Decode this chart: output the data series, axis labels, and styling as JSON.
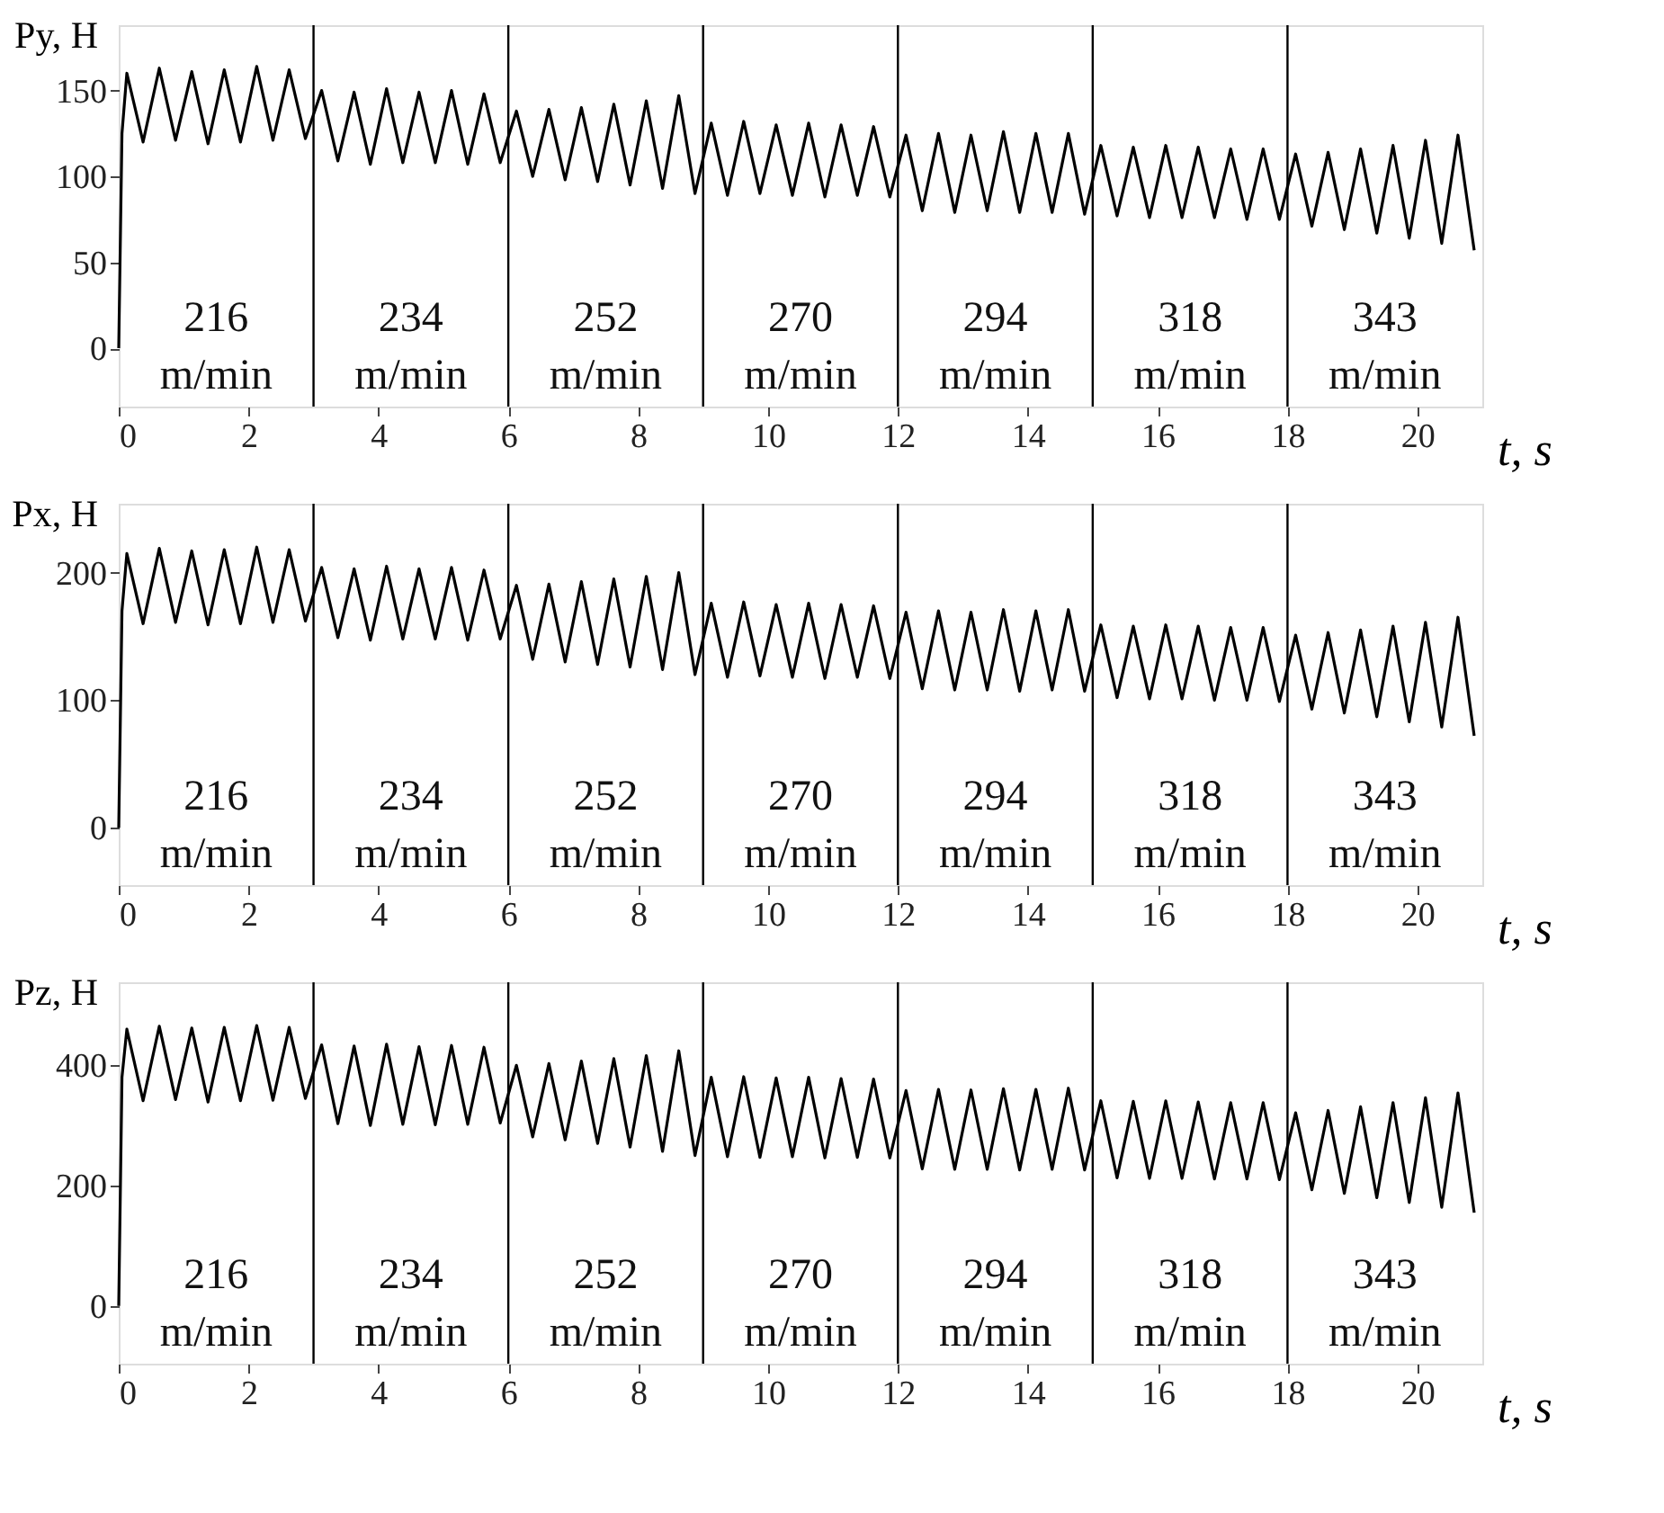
{
  "chart_data": [
    {
      "type": "line",
      "ylabel": "Py, H",
      "xlabel": "t, s",
      "xlim": [
        0,
        21
      ],
      "xticks": [
        0,
        2,
        4,
        6,
        8,
        10,
        12,
        14,
        16,
        18,
        20
      ],
      "ylim": [
        -34,
        188
      ],
      "yticks": [
        0,
        50,
        100,
        150
      ],
      "grid": false,
      "x": [
        0,
        0.05,
        0.125,
        0.375,
        0.625,
        0.875,
        1.125,
        1.375,
        1.625,
        1.875,
        2.125,
        2.375,
        2.625,
        2.875,
        3.125,
        3.375,
        3.625,
        3.875,
        4.125,
        4.375,
        4.625,
        4.875,
        5.125,
        5.375,
        5.625,
        5.875,
        6.125,
        6.375,
        6.625,
        6.875,
        7.125,
        7.375,
        7.625,
        7.875,
        8.125,
        8.375,
        8.625,
        8.875,
        9.125,
        9.375,
        9.625,
        9.875,
        10.125,
        10.375,
        10.625,
        10.875,
        11.125,
        11.375,
        11.625,
        11.875,
        12.125,
        12.375,
        12.625,
        12.875,
        13.125,
        13.375,
        13.625,
        13.875,
        14.125,
        14.375,
        14.625,
        14.875,
        15.125,
        15.375,
        15.625,
        15.875,
        16.125,
        16.375,
        16.625,
        16.875,
        17.125,
        17.375,
        17.625,
        17.875,
        18.125,
        18.375,
        18.625,
        18.875,
        19.125,
        19.375,
        19.625,
        19.875,
        20.125,
        20.375,
        20.625,
        20.875
      ],
      "series": [
        {
          "color": "#000000",
          "values": [
            0,
            125,
            160,
            120,
            163,
            121,
            161,
            119,
            162,
            120,
            164,
            121,
            162,
            122,
            150,
            109,
            149,
            107,
            151,
            108,
            149,
            108,
            150,
            107,
            148,
            108,
            138,
            100,
            139,
            98,
            140,
            97,
            142,
            95,
            144,
            93,
            147,
            90,
            131,
            89,
            132,
            90,
            130,
            89,
            131,
            88,
            130,
            89,
            129,
            88,
            124,
            80,
            125,
            79,
            124,
            80,
            126,
            79,
            125,
            79,
            125,
            78,
            118,
            77,
            117,
            76,
            118,
            76,
            117,
            76,
            116,
            75,
            116,
            75,
            113,
            71,
            114,
            69,
            116,
            67,
            118,
            64,
            121,
            61,
            124,
            57
          ]
        }
      ],
      "ref_lines": [
        {
          "axis": "x",
          "value": 3,
          "color": "#000000"
        },
        {
          "axis": "x",
          "value": 6,
          "color": "#000000"
        },
        {
          "axis": "x",
          "value": 9,
          "color": "#000000"
        },
        {
          "axis": "x",
          "value": 12,
          "color": "#000000"
        },
        {
          "axis": "x",
          "value": 15,
          "color": "#000000"
        },
        {
          "axis": "x",
          "value": 18,
          "color": "#000000"
        }
      ],
      "annotations": [
        "216\nm/min",
        "234\nm/min",
        "252\nm/min",
        "270\nm/min",
        "294\nm/min",
        "318\nm/min",
        "343\nm/min"
      ]
    },
    {
      "type": "line",
      "ylabel": "Px, H",
      "xlabel": "t, s",
      "xlim": [
        0,
        21
      ],
      "xticks": [
        0,
        2,
        4,
        6,
        8,
        10,
        12,
        14,
        16,
        18,
        20
      ],
      "ylim": [
        -45,
        254
      ],
      "yticks": [
        0,
        100,
        200
      ],
      "grid": false,
      "x": [
        0,
        0.05,
        0.125,
        0.375,
        0.625,
        0.875,
        1.125,
        1.375,
        1.625,
        1.875,
        2.125,
        2.375,
        2.625,
        2.875,
        3.125,
        3.375,
        3.625,
        3.875,
        4.125,
        4.375,
        4.625,
        4.875,
        5.125,
        5.375,
        5.625,
        5.875,
        6.125,
        6.375,
        6.625,
        6.875,
        7.125,
        7.375,
        7.625,
        7.875,
        8.125,
        8.375,
        8.625,
        8.875,
        9.125,
        9.375,
        9.625,
        9.875,
        10.125,
        10.375,
        10.625,
        10.875,
        11.125,
        11.375,
        11.625,
        11.875,
        12.125,
        12.375,
        12.625,
        12.875,
        13.125,
        13.375,
        13.625,
        13.875,
        14.125,
        14.375,
        14.625,
        14.875,
        15.125,
        15.375,
        15.625,
        15.875,
        16.125,
        16.375,
        16.625,
        16.875,
        17.125,
        17.375,
        17.625,
        17.875,
        18.125,
        18.375,
        18.625,
        18.875,
        19.125,
        19.375,
        19.625,
        19.875,
        20.125,
        20.375,
        20.625,
        20.875
      ],
      "series": [
        {
          "color": "#000000",
          "values": [
            0,
            170,
            215,
            160,
            219,
            161,
            217,
            159,
            218,
            160,
            220,
            161,
            218,
            162,
            204,
            149,
            203,
            147,
            205,
            148,
            203,
            148,
            204,
            147,
            202,
            148,
            190,
            132,
            191,
            130,
            193,
            128,
            195,
            126,
            197,
            124,
            200,
            120,
            176,
            118,
            177,
            119,
            175,
            118,
            176,
            117,
            175,
            118,
            174,
            117,
            169,
            109,
            170,
            108,
            169,
            108,
            171,
            107,
            170,
            108,
            171,
            107,
            159,
            102,
            158,
            101,
            159,
            101,
            158,
            100,
            157,
            100,
            157,
            99,
            151,
            93,
            153,
            90,
            155,
            87,
            158,
            83,
            161,
            79,
            165,
            72
          ]
        }
      ],
      "ref_lines": [
        {
          "axis": "x",
          "value": 3,
          "color": "#000000"
        },
        {
          "axis": "x",
          "value": 6,
          "color": "#000000"
        },
        {
          "axis": "x",
          "value": 9,
          "color": "#000000"
        },
        {
          "axis": "x",
          "value": 12,
          "color": "#000000"
        },
        {
          "axis": "x",
          "value": 15,
          "color": "#000000"
        },
        {
          "axis": "x",
          "value": 18,
          "color": "#000000"
        }
      ],
      "annotations": [
        "216\nm/min",
        "234\nm/min",
        "252\nm/min",
        "270\nm/min",
        "294\nm/min",
        "318\nm/min",
        "343\nm/min"
      ]
    },
    {
      "type": "line",
      "ylabel": "Pz, H",
      "xlabel": "t, s",
      "xlim": [
        0,
        21
      ],
      "xticks": [
        0,
        2,
        4,
        6,
        8,
        10,
        12,
        14,
        16,
        18,
        20
      ],
      "ylim": [
        -96,
        538
      ],
      "yticks": [
        0,
        200,
        400
      ],
      "grid": false,
      "x": [
        0,
        0.05,
        0.125,
        0.375,
        0.625,
        0.875,
        1.125,
        1.375,
        1.625,
        1.875,
        2.125,
        2.375,
        2.625,
        2.875,
        3.125,
        3.375,
        3.625,
        3.875,
        4.125,
        4.375,
        4.625,
        4.875,
        5.125,
        5.375,
        5.625,
        5.875,
        6.125,
        6.375,
        6.625,
        6.875,
        7.125,
        7.375,
        7.625,
        7.875,
        8.125,
        8.375,
        8.625,
        8.875,
        9.125,
        9.375,
        9.625,
        9.875,
        10.125,
        10.375,
        10.625,
        10.875,
        11.125,
        11.375,
        11.625,
        11.875,
        12.125,
        12.375,
        12.625,
        12.875,
        13.125,
        13.375,
        13.625,
        13.875,
        14.125,
        14.375,
        14.625,
        14.875,
        15.125,
        15.375,
        15.625,
        15.875,
        16.125,
        16.375,
        16.625,
        16.875,
        17.125,
        17.375,
        17.625,
        17.875,
        18.125,
        18.375,
        18.625,
        18.875,
        19.125,
        19.375,
        19.625,
        19.875,
        20.125,
        20.375,
        20.625,
        20.875
      ],
      "series": [
        {
          "color": "#000000",
          "values": [
            0,
            380,
            460,
            341,
            465,
            343,
            462,
            339,
            463,
            341,
            466,
            342,
            463,
            345,
            434,
            303,
            432,
            300,
            435,
            302,
            431,
            301,
            433,
            302,
            430,
            304,
            400,
            281,
            403,
            276,
            407,
            270,
            411,
            264,
            416,
            257,
            424,
            250,
            380,
            248,
            381,
            247,
            379,
            248,
            380,
            246,
            378,
            247,
            377,
            246,
            358,
            228,
            360,
            227,
            359,
            227,
            361,
            226,
            360,
            227,
            362,
            226,
            341,
            213,
            340,
            212,
            341,
            212,
            339,
            211,
            338,
            211,
            338,
            210,
            321,
            193,
            325,
            187,
            331,
            180,
            338,
            172,
            346,
            164,
            354,
            155
          ]
        }
      ],
      "ref_lines": [
        {
          "axis": "x",
          "value": 3,
          "color": "#000000"
        },
        {
          "axis": "x",
          "value": 6,
          "color": "#000000"
        },
        {
          "axis": "x",
          "value": 9,
          "color": "#000000"
        },
        {
          "axis": "x",
          "value": 12,
          "color": "#000000"
        },
        {
          "axis": "x",
          "value": 15,
          "color": "#000000"
        },
        {
          "axis": "x",
          "value": 18,
          "color": "#000000"
        }
      ],
      "annotations": [
        "216\nm/min",
        "234\nm/min",
        "252\nm/min",
        "270\nm/min",
        "294\nm/min",
        "318\nm/min",
        "343\nm/min"
      ]
    }
  ]
}
